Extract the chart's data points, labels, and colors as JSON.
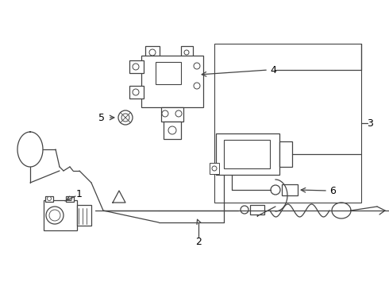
{
  "background_color": "#ffffff",
  "line_color": "#444444",
  "label_color": "#000000",
  "fig_width": 4.9,
  "fig_height": 3.6,
  "dpi": 100,
  "label_fontsize": 9
}
